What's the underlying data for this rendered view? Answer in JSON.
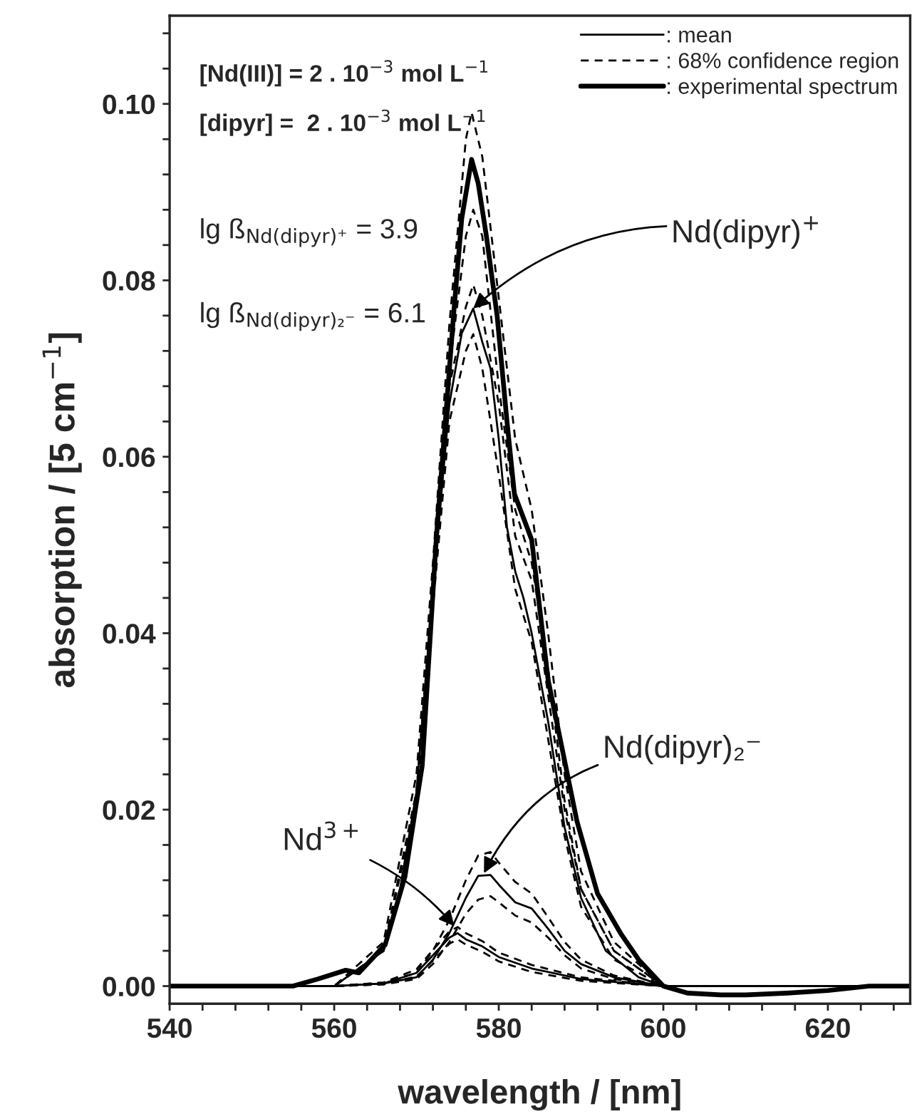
{
  "chart_data": {
    "type": "line",
    "xlabel": "wavelength / [nm]",
    "ylabel": "absorption / [5 cm$^{−1}$]",
    "xlim": [
      540,
      630
    ],
    "ylim": [
      -0.002,
      0.11
    ],
    "xticks": [
      540,
      {
        "value": 544,
        "label": null
      },
      {
        "value": 548,
        "label": null
      },
      {
        "value": 552,
        "label": null
      },
      {
        "value": 556,
        "label": null
      },
      560,
      {
        "value": 564,
        "label": null
      },
      {
        "value": 568,
        "label": null
      },
      {
        "value": 572,
        "label": null
      },
      {
        "value": 576,
        "label": null
      },
      580,
      {
        "value": 584,
        "label": null
      },
      {
        "value": 588,
        "label": null
      },
      {
        "value": 592,
        "label": null
      },
      {
        "value": 596,
        "label": null
      },
      600,
      {
        "value": 604,
        "label": null
      },
      {
        "value": 608,
        "label": null
      },
      {
        "value": 612,
        "label": null
      },
      {
        "value": 616,
        "label": null
      },
      620,
      {
        "value": 624,
        "label": null
      },
      {
        "value": 628,
        "label": null
      }
    ],
    "yticks": [
      {
        "value": 0,
        "label": "0.00"
      },
      {
        "value": 0.004,
        "label": null
      },
      {
        "value": 0.008,
        "label": null
      },
      {
        "value": 0.012,
        "label": null
      },
      {
        "value": 0.016,
        "label": null
      },
      {
        "value": 0.02,
        "label": "0.02"
      },
      {
        "value": 0.024,
        "label": null
      },
      {
        "value": 0.028,
        "label": null
      },
      {
        "value": 0.032,
        "label": null
      },
      {
        "value": 0.036,
        "label": null
      },
      {
        "value": 0.04,
        "label": "0.04"
      },
      {
        "value": 0.044,
        "label": null
      },
      {
        "value": 0.048,
        "label": null
      },
      {
        "value": 0.052,
        "label": null
      },
      {
        "value": 0.056,
        "label": null
      },
      {
        "value": 0.06,
        "label": "0.06"
      },
      {
        "value": 0.064,
        "label": null
      },
      {
        "value": 0.068,
        "label": null
      },
      {
        "value": 0.072,
        "label": null
      },
      {
        "value": 0.076,
        "label": null
      },
      {
        "value": 0.08,
        "label": "0.08"
      },
      {
        "value": 0.084,
        "label": null
      },
      {
        "value": 0.088,
        "label": null
      },
      {
        "value": 0.092,
        "label": null
      },
      {
        "value": 0.096,
        "label": null
      },
      {
        "value": 0.1,
        "label": "0.10"
      },
      {
        "value": 0.104,
        "label": null
      },
      {
        "value": 0.108,
        "label": null
      }
    ],
    "grid": false,
    "legend": "top right",
    "marker": "none",
    "series": [
      {
        "name": ": mean",
        "color": "#000000",
        "line_style": "solid",
        "x": [
          540,
          560,
          566,
          568,
          570,
          572,
          574,
          575.5,
          576.9,
          578,
          579,
          580,
          581,
          582,
          583,
          584,
          586,
          588,
          590,
          593,
          597,
          600,
          630
        ],
        "values": [
          0,
          0,
          0.004,
          0.011,
          0.022,
          0.045,
          0.066,
          0.074,
          0.0768,
          0.073,
          0.07,
          0.062,
          0.052,
          0.047,
          0.044,
          0.04,
          0.03,
          0.018,
          0.01,
          0.004,
          0.001,
          0,
          0
        ]
      },
      {
        "name": ": 68% confidence region",
        "color": "#000000",
        "line_style": "dashed",
        "x": [
          540,
          560,
          566,
          570,
          572,
          574,
          576,
          576.7,
          578,
          580,
          582,
          584,
          586,
          588,
          590,
          594,
          600,
          630
        ],
        "values": [
          0,
          0,
          0.005,
          0.024,
          0.048,
          0.075,
          0.096,
          0.099,
          0.094,
          0.078,
          0.062,
          0.054,
          0.04,
          0.024,
          0.013,
          0.005,
          0,
          0
        ]
      },
      {
        "color": "#000000",
        "line_style": "dashed",
        "x": [
          540,
          560,
          566,
          570,
          572,
          574,
          576,
          576.9,
          578,
          580,
          582,
          584,
          586,
          588,
          590,
          594,
          600,
          630
        ],
        "values": [
          0,
          0,
          0.004,
          0.022,
          0.045,
          0.07,
          0.085,
          0.088,
          0.085,
          0.068,
          0.054,
          0.048,
          0.036,
          0.021,
          0.011,
          0.004,
          0,
          0
        ]
      },
      {
        "color": "#000000",
        "line_style": "dashed",
        "x": [
          540,
          560,
          566,
          570,
          572,
          574,
          576,
          576.9,
          578,
          580,
          582,
          584,
          586,
          588,
          590,
          594,
          600,
          630
        ],
        "values": [
          0,
          0,
          0.004,
          0.022,
          0.045,
          0.068,
          0.077,
          0.0795,
          0.076,
          0.066,
          0.051,
          0.046,
          0.033,
          0.02,
          0.011,
          0.004,
          0,
          0
        ]
      },
      {
        "color": "#000000",
        "line_style": "dashed",
        "x": [
          540,
          560,
          566,
          570,
          572,
          574,
          576,
          576.9,
          578,
          580,
          582,
          584,
          586,
          588,
          590,
          594,
          600,
          630
        ],
        "values": [
          0,
          0,
          0.004,
          0.021,
          0.043,
          0.064,
          0.072,
          0.0739,
          0.07,
          0.058,
          0.045,
          0.039,
          0.028,
          0.017,
          0.009,
          0.003,
          0,
          0
        ]
      },
      {
        "color": "#000000",
        "line_style": "solid",
        "x": [
          540,
          560,
          566,
          570,
          572,
          574,
          576,
          577.5,
          579,
          580,
          582,
          584,
          586,
          588,
          590,
          594,
          600,
          630
        ],
        "values": [
          0,
          0,
          0.0003,
          0.001,
          0.003,
          0.006,
          0.01,
          0.0125,
          0.0126,
          0.0115,
          0.0095,
          0.0088,
          0.0065,
          0.004,
          0.0025,
          0.001,
          0,
          0
        ]
      },
      {
        "color": "#000000",
        "line_style": "dashed",
        "x": [
          540,
          560,
          566,
          570,
          572,
          574,
          576,
          577.5,
          579,
          580,
          582,
          584,
          586,
          588,
          590,
          594,
          600,
          630
        ],
        "values": [
          0,
          0,
          0.0004,
          0.0015,
          0.004,
          0.0075,
          0.012,
          0.0148,
          0.0152,
          0.014,
          0.0118,
          0.0105,
          0.0078,
          0.005,
          0.003,
          0.0012,
          0,
          0
        ]
      },
      {
        "color": "#000000",
        "line_style": "dashed",
        "x": [
          540,
          560,
          566,
          570,
          572,
          574,
          576,
          577.5,
          579,
          580,
          582,
          584,
          586,
          588,
          590,
          594,
          600,
          630
        ],
        "values": [
          0,
          0,
          0.0002,
          0.0008,
          0.0025,
          0.005,
          0.0082,
          0.0098,
          0.0102,
          0.0095,
          0.008,
          0.0072,
          0.0055,
          0.0035,
          0.002,
          0.0008,
          0,
          0
        ]
      },
      {
        "color": "#000000",
        "line_style": "solid",
        "x": [
          540,
          560,
          566,
          570,
          572,
          574,
          575,
          576,
          578,
          580,
          584,
          590,
          600,
          630
        ],
        "values": [
          0,
          0,
          0.0003,
          0.0015,
          0.0035,
          0.0055,
          0.006,
          0.0053,
          0.0045,
          0.0033,
          0.002,
          0.0008,
          0,
          0
        ]
      },
      {
        "color": "#000000",
        "line_style": "dashed",
        "x": [
          540,
          560,
          566,
          570,
          572,
          574,
          575,
          576,
          578,
          580,
          584,
          590,
          600,
          630
        ],
        "values": [
          0,
          0,
          0.0004,
          0.0019,
          0.0041,
          0.0062,
          0.0067,
          0.006,
          0.0051,
          0.0038,
          0.0024,
          0.001,
          0,
          0
        ]
      },
      {
        "color": "#000000",
        "line_style": "dashed",
        "x": [
          540,
          560,
          566,
          570,
          572,
          574,
          575,
          576,
          578,
          580,
          584,
          590,
          600,
          630
        ],
        "values": [
          0,
          0,
          0.0002,
          0.0011,
          0.0029,
          0.0048,
          0.0053,
          0.0047,
          0.0039,
          0.0028,
          0.0016,
          0.0006,
          0,
          0
        ]
      },
      {
        "name": ": experimental spectrum",
        "color": "#000000",
        "line_style": "solid",
        "x": [
          540,
          545,
          550,
          555,
          558,
          561.4,
          563,
          566.2,
          568.6,
          570.7,
          572.4,
          574.5,
          575.5,
          576.7,
          577.5,
          578.5,
          579.8,
          581,
          581.9,
          584,
          586,
          589.5,
          592,
          594.8,
          597,
          600,
          603,
          607,
          610,
          615,
          620,
          625,
          630
        ],
        "values": [
          0,
          0,
          0,
          0,
          0.0008,
          0.0018,
          0.0015,
          0.0047,
          0.0124,
          0.025,
          0.0506,
          0.076,
          0.087,
          0.0937,
          0.091,
          0.085,
          0.076,
          0.064,
          0.0558,
          0.0506,
          0.0347,
          0.0187,
          0.0105,
          0.006,
          0.003,
          0,
          -0.0008,
          -0.001,
          -0.001,
          -0.0008,
          -0.0005,
          0,
          0
        ]
      }
    ],
    "annotations": [
      "[Nd(III)] = 2 . 10$^{−3}$ mol L$^{−1}$",
      "[dipyr] =  2 . 10$^{−3}$ mol L$^{−1}$",
      "lg ß$_{Nd(dipyr)⁺}$ = 3.9",
      "lg ß$_{Nd(dipyr)₂⁻}$ = 6.1",
      {
        "text": "Nd(dipyr)$^{+}$",
        "x": 576.9,
        "y": 0.0768
      },
      {
        "text": "Nd(dipyr)₂⁻",
        "x": 578.2,
        "y": 0.0128
      },
      {
        "text": "Nd$^{3+}$",
        "x": 574.6,
        "y": 0.0068
      }
    ]
  }
}
